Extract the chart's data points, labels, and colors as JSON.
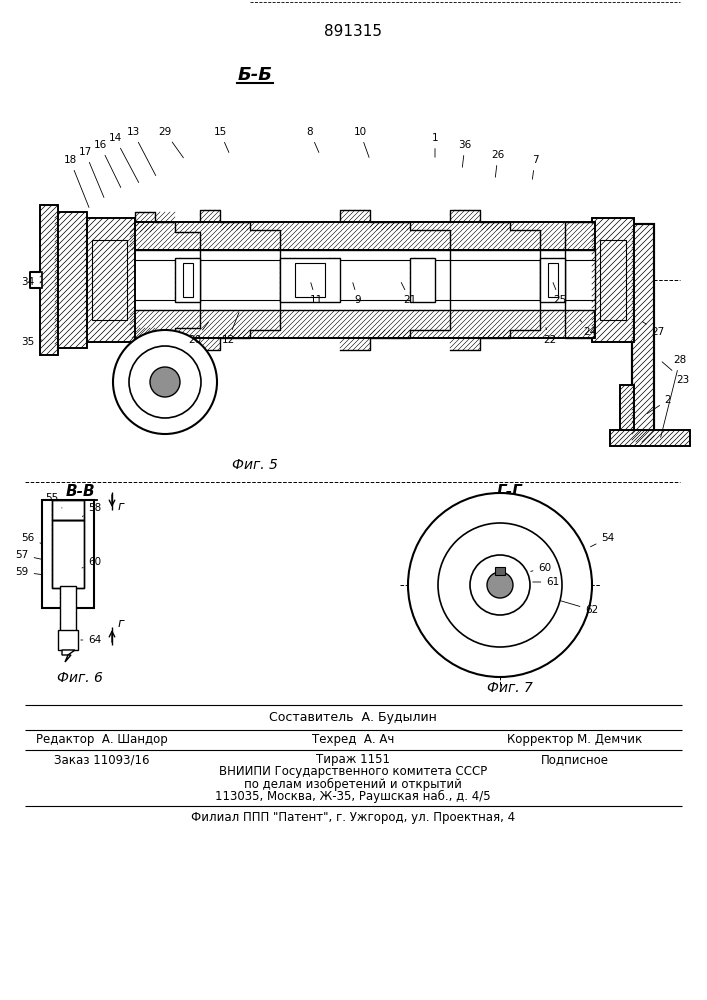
{
  "patent_number": "891315",
  "section_label_bb": "Б-Б",
  "section_label_vv": "В-В",
  "section_label_gg": "Г-Г",
  "fig5_label": "Фиг. 5",
  "fig6_label": "Фиг. 6",
  "fig7_label": "Фиг. 7",
  "arrow_r": "г",
  "footer_sostavitel": "Составитель  А. Будылин",
  "footer_redaktor": "Редактор  А. Шандор",
  "footer_tehred": "Техред  А. Ач",
  "footer_korrektor": "Корректор М. Демчик",
  "footer_zakaz": "Заказ 11093/16",
  "footer_tirazh": "Тираж 1151",
  "footer_podpisnoe": "Подписное",
  "footer_vniip1": "ВНИИПИ Государственного комитета СССР",
  "footer_vniip2": "по делам изобретений и открытий",
  "footer_vniip3": "113035, Москва, Ж-35, Раушская наб., д. 4/5",
  "footer_filial": "Филиал ППП \"Патент\", г. Ужгород, ул. Проектная, 4",
  "bg_color": "#ffffff",
  "line_color": "#000000"
}
